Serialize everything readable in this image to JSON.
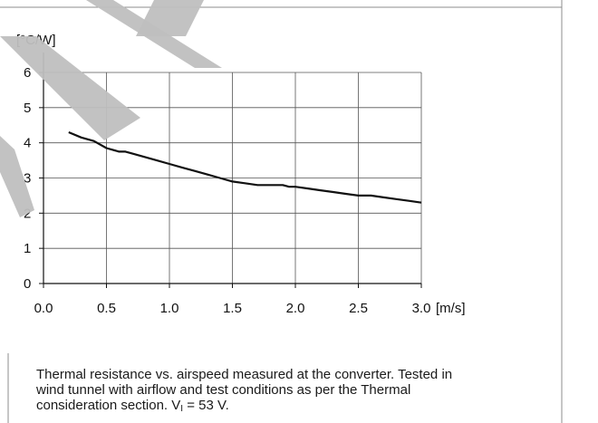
{
  "chart_data": {
    "type": "line",
    "ylabel": "[°C/W]",
    "xunit": "[m/s]",
    "xlim": [
      0,
      3.0
    ],
    "ylim": [
      0,
      6
    ],
    "grid": true,
    "x_ticks": [
      "0.0",
      "0.5",
      "1.0",
      "1.5",
      "2.0",
      "2.5",
      "3.0"
    ],
    "y_ticks": [
      "0",
      "1",
      "2",
      "3",
      "4",
      "5",
      "6"
    ],
    "series": [
      {
        "color": "#111111",
        "x": [
          0.2,
          0.3,
          0.4,
          0.5,
          0.6,
          0.65,
          0.7,
          0.8,
          0.9,
          1.0,
          1.1,
          1.2,
          1.3,
          1.4,
          1.5,
          1.6,
          1.7,
          1.8,
          1.9,
          1.95,
          2.0,
          2.1,
          2.2,
          2.3,
          2.4,
          2.5,
          2.6,
          2.7,
          2.8,
          2.9,
          3.0
        ],
        "y": [
          4.3,
          4.15,
          4.05,
          3.85,
          3.75,
          3.75,
          3.7,
          3.6,
          3.5,
          3.4,
          3.3,
          3.2,
          3.1,
          3.0,
          2.9,
          2.85,
          2.8,
          2.8,
          2.8,
          2.75,
          2.75,
          2.7,
          2.65,
          2.6,
          2.55,
          2.5,
          2.5,
          2.45,
          2.4,
          2.35,
          2.3
        ]
      }
    ]
  },
  "caption": {
    "line1": "Thermal resistance vs. airspeed measured at the converter. Tested in",
    "line2": "wind tunnel with airflow and test conditions as per the Thermal",
    "line3_prefix": "consideration section. V",
    "line3_sub": "I",
    "line3_suffix": " = 53 V."
  },
  "watermark": {
    "color": "#bfbfbf"
  },
  "frame": {
    "border_color": "#8c8c8c"
  }
}
